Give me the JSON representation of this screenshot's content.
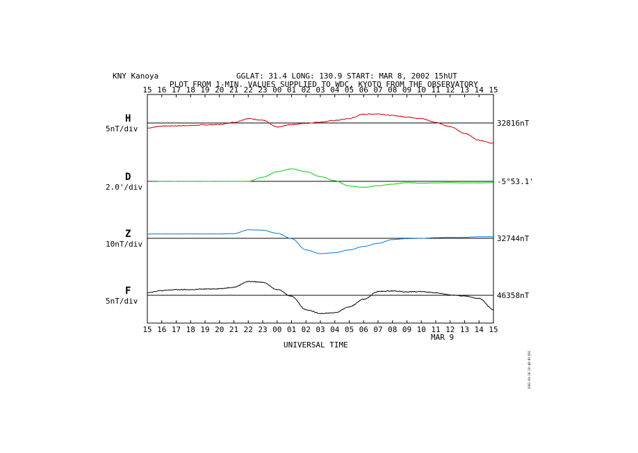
{
  "header": {
    "station": "KNY  Kanoya",
    "coords": "GGLAT:  31.4 LONG: 130.9  START: MAR  8, 2002  15hUT",
    "subtitle": "PLOT FROM 1-MIN. VALUES SUPPLIED TO WDC, KYOTO FROM THE OBSERVATORY"
  },
  "footer": {
    "date_label": "MAR  9",
    "xlabel": "UNIVERSAL TIME"
  },
  "margin_text": "2002-04-18 10:44:40 B01",
  "chart_data": [
    {
      "type": "line",
      "component": "H",
      "scale": "5nT/div",
      "baseline": "32816nT",
      "color": "#cc0000",
      "x": [
        "15",
        "16",
        "17",
        "18",
        "19",
        "20",
        "21",
        "22",
        "23",
        "00",
        "01",
        "02",
        "03",
        "04",
        "05",
        "06",
        "07",
        "08",
        "09",
        "10",
        "11",
        "12",
        "13",
        "14",
        "15"
      ],
      "values": [
        -1.6,
        -1.0,
        -0.9,
        -0.8,
        -0.6,
        -0.5,
        0.2,
        1.4,
        0.9,
        -1.3,
        -0.5,
        -0.1,
        0.3,
        0.8,
        1.4,
        2.8,
        2.9,
        2.4,
        1.9,
        1.4,
        0.2,
        -1.2,
        -3.3,
        -5.5,
        -6.5
      ],
      "units": "div"
    },
    {
      "type": "line",
      "component": "D",
      "scale": "2.0'/div",
      "baseline": "-5°53.1'",
      "color": "#00cc00",
      "x": [
        "15",
        "16",
        "17",
        "18",
        "19",
        "20",
        "21",
        "22",
        "23",
        "00",
        "01",
        "02",
        "03",
        "04",
        "05",
        "06",
        "07",
        "08",
        "09",
        "10",
        "11",
        "12",
        "13",
        "14",
        "15"
      ],
      "values": [
        -0.1,
        0.0,
        0.0,
        0.0,
        0.0,
        0.0,
        0.0,
        0.0,
        1.3,
        3.1,
        4.0,
        3.1,
        1.5,
        0.2,
        -1.5,
        -1.9,
        -1.4,
        -0.9,
        -0.4,
        -0.6,
        -0.5,
        -0.4,
        -0.5,
        -0.5,
        -0.4
      ],
      "units": "div"
    },
    {
      "type": "line",
      "component": "Z",
      "scale": "10nT/div",
      "baseline": "32744nT",
      "color": "#0077dd",
      "x": [
        "15",
        "16",
        "17",
        "18",
        "19",
        "20",
        "21",
        "22",
        "23",
        "00",
        "01",
        "02",
        "03",
        "04",
        "05",
        "06",
        "07",
        "08",
        "09",
        "10",
        "11",
        "12",
        "13",
        "14",
        "15"
      ],
      "values": [
        1.4,
        1.4,
        1.4,
        1.4,
        1.4,
        1.4,
        1.5,
        2.7,
        2.6,
        1.6,
        -0.1,
        -3.7,
        -4.9,
        -4.6,
        -3.7,
        -2.6,
        -1.6,
        -0.4,
        -0.1,
        0.0,
        0.2,
        0.3,
        0.3,
        0.5,
        0.5
      ],
      "units": "div"
    },
    {
      "type": "line",
      "component": "F",
      "scale": "5nT/div",
      "baseline": "46358nT",
      "color": "#000000",
      "x": [
        "15",
        "16",
        "17",
        "18",
        "19",
        "20",
        "21",
        "22",
        "23",
        "00",
        "01",
        "02",
        "03",
        "04",
        "05",
        "06",
        "07",
        "08",
        "09",
        "10",
        "11",
        "12",
        "13",
        "14",
        "15"
      ],
      "values": [
        0.9,
        1.5,
        1.8,
        1.8,
        2.0,
        2.1,
        2.6,
        4.4,
        4.2,
        1.9,
        -0.3,
        -4.6,
        -5.8,
        -5.6,
        -3.7,
        -1.3,
        1.2,
        1.4,
        1.1,
        1.2,
        0.8,
        0.1,
        -0.2,
        -1.0,
        -4.6
      ],
      "units": "div"
    }
  ]
}
